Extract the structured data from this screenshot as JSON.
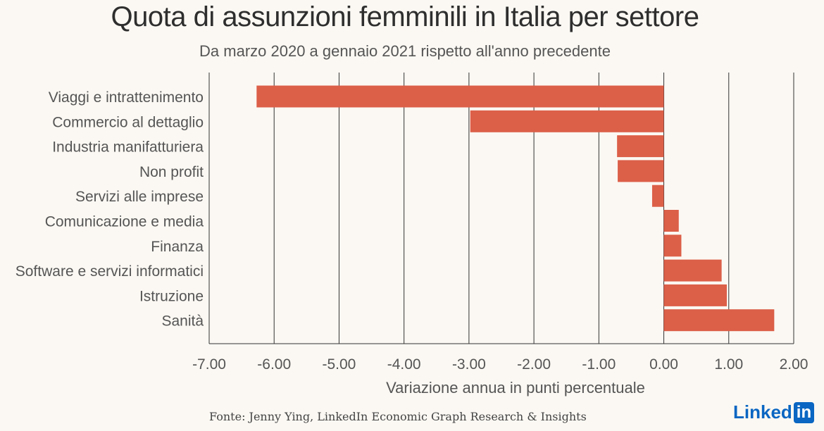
{
  "header": {
    "title": "Quota di assunzioni femminili in Italia per settore",
    "subtitle": "Da marzo 2020 a gennaio 2021 rispetto all'anno precedente"
  },
  "footer": {
    "source": "Fonte: Jenny Ying, LinkedIn Economic Graph Research & Insights",
    "brand_text": "Linked",
    "brand_box": "in"
  },
  "colors": {
    "bar": "#dc5f48",
    "grid": "#333333",
    "background": "#fbf8f3"
  },
  "chart_data": {
    "type": "bar",
    "orientation": "horizontal",
    "title": "Quota di assunzioni femminili in Italia per settore",
    "subtitle": "Da marzo 2020 a gennaio 2021 rispetto all'anno precedente",
    "xlabel": "Variazione annua in punti percentuale",
    "ylabel": "",
    "xlim": [
      -7,
      2
    ],
    "xticks": [
      "-7.00",
      "-6.00",
      "-5.00",
      "-4.00",
      "-3.00",
      "-2.00",
      "-1.00",
      "0.00",
      "1.00",
      "2.00"
    ],
    "xtick_values": [
      -7,
      -6,
      -5,
      -4,
      -3,
      -2,
      -1,
      0,
      1,
      2
    ],
    "grid": "vertical",
    "categories": [
      "Viaggi e intrattenimento",
      "Commercio al dettaglio",
      "Industria manifatturiera",
      "Non profit",
      "Servizi alle imprese",
      "Comunicazione e media",
      "Finanza",
      "Software e servizi informatici",
      "Istruzione",
      "Sanità"
    ],
    "values": [
      -6.27,
      -2.98,
      -0.72,
      -0.71,
      -0.18,
      0.23,
      0.27,
      0.89,
      0.97,
      1.7
    ]
  }
}
